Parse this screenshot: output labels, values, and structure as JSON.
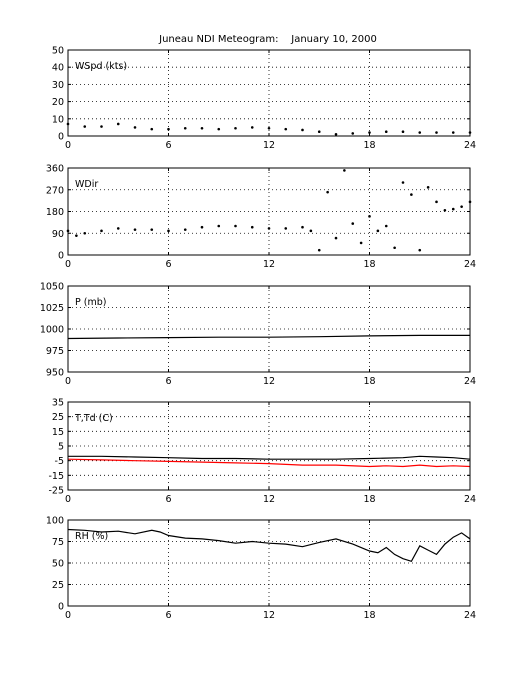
{
  "figure": {
    "title": "Juneau NDI Meteogram:    January 10, 2000"
  },
  "chart_data": [
    {
      "type": "scatter",
      "label": "WSpd (kts)",
      "xlim": [
        0,
        24
      ],
      "ylim": [
        0,
        50
      ],
      "xticks": [
        0,
        6,
        12,
        18,
        24
      ],
      "yticks": [
        0,
        10,
        20,
        30,
        40,
        50
      ],
      "grid": true,
      "series": [
        {
          "color": "#000000",
          "x": [
            0,
            1,
            2,
            3,
            4,
            5,
            6,
            7,
            8,
            9,
            10,
            11,
            12,
            13,
            14,
            15,
            16,
            17,
            18,
            19,
            20,
            21,
            22,
            23,
            24
          ],
          "y": [
            7,
            5.5,
            5.5,
            7,
            5,
            4,
            4,
            4.5,
            4.5,
            4,
            4.5,
            5,
            4.5,
            4,
            3.5,
            2.5,
            1,
            1.5,
            2,
            2.5,
            2.5,
            2,
            2,
            2,
            2
          ]
        }
      ]
    },
    {
      "type": "scatter",
      "label": "WDir",
      "xlim": [
        0,
        24
      ],
      "ylim": [
        0,
        360
      ],
      "xticks": [
        0,
        6,
        12,
        18,
        24
      ],
      "yticks": [
        0,
        90,
        180,
        270,
        360
      ],
      "grid": true,
      "series": [
        {
          "color": "#000000",
          "x": [
            0,
            0.5,
            1,
            2,
            3,
            4,
            5,
            6,
            7,
            8,
            9,
            10,
            11,
            12,
            13,
            14,
            14.5,
            15,
            15.5,
            16,
            16.5,
            17,
            17.5,
            18,
            18.5,
            19,
            19.5,
            20,
            20.5,
            21,
            21.5,
            22,
            22.5,
            23,
            23.5,
            24
          ],
          "y": [
            100,
            80,
            90,
            100,
            110,
            105,
            105,
            100,
            105,
            115,
            120,
            120,
            115,
            110,
            110,
            115,
            100,
            20,
            260,
            70,
            350,
            130,
            50,
            160,
            100,
            120,
            30,
            300,
            250,
            20,
            280,
            220,
            185,
            190,
            200,
            220
          ]
        }
      ]
    },
    {
      "type": "line",
      "label": "P (mb)",
      "xlim": [
        0,
        24
      ],
      "ylim": [
        950,
        1050
      ],
      "xticks": [
        0,
        6,
        12,
        18,
        24
      ],
      "yticks": [
        950,
        975,
        1000,
        1025,
        1050
      ],
      "grid": true,
      "series": [
        {
          "color": "#000000",
          "x": [
            0,
            3,
            6,
            9,
            12,
            15,
            18,
            21,
            24
          ],
          "y": [
            989,
            989.5,
            990,
            990.5,
            990.5,
            991,
            992,
            992.5,
            992.5
          ]
        }
      ]
    },
    {
      "type": "line",
      "label": "T,Td (C)",
      "xlim": [
        0,
        24
      ],
      "ylim": [
        -25,
        35
      ],
      "xticks": [
        0,
        6,
        12,
        18,
        24
      ],
      "yticks": [
        -25,
        -15,
        -5,
        5,
        15,
        25,
        35
      ],
      "grid": true,
      "series": [
        {
          "color": "#000000",
          "x": [
            0,
            2,
            4,
            6,
            8,
            10,
            12,
            14,
            16,
            18,
            20,
            21,
            22,
            23,
            24
          ],
          "y": [
            -2,
            -2,
            -2.5,
            -3,
            -3.5,
            -3.5,
            -4,
            -4,
            -4,
            -3.5,
            -3,
            -2,
            -2.5,
            -3,
            -4
          ]
        },
        {
          "color": "#ff0000",
          "x": [
            0,
            2,
            4,
            6,
            8,
            10,
            12,
            14,
            16,
            18,
            19,
            20,
            21,
            22,
            23,
            24
          ],
          "y": [
            -4,
            -4.5,
            -5,
            -5.5,
            -6,
            -6.5,
            -7,
            -8,
            -8,
            -9,
            -8.5,
            -9,
            -8,
            -9,
            -8.5,
            -9
          ]
        }
      ]
    },
    {
      "type": "line",
      "label": "RH (%)",
      "xlim": [
        0,
        24
      ],
      "ylim": [
        0,
        100
      ],
      "xticks": [
        0,
        6,
        12,
        18,
        24
      ],
      "yticks": [
        0,
        25,
        50,
        75,
        100
      ],
      "grid": true,
      "series": [
        {
          "color": "#000000",
          "x": [
            0,
            1,
            2,
            3,
            4,
            5,
            5.5,
            6,
            7,
            8,
            9,
            10,
            11,
            12,
            13,
            14,
            15,
            16,
            17,
            18,
            18.5,
            19,
            19.5,
            20,
            20.5,
            21,
            21.5,
            22,
            22.5,
            23,
            23.5,
            24
          ],
          "y": [
            89,
            88,
            86,
            87,
            84,
            88,
            86,
            82,
            79,
            78,
            76,
            73,
            75,
            73,
            72,
            69,
            74,
            78,
            72,
            64,
            62,
            68,
            60,
            55,
            52,
            70,
            65,
            60,
            72,
            80,
            85,
            78
          ]
        }
      ]
    }
  ]
}
